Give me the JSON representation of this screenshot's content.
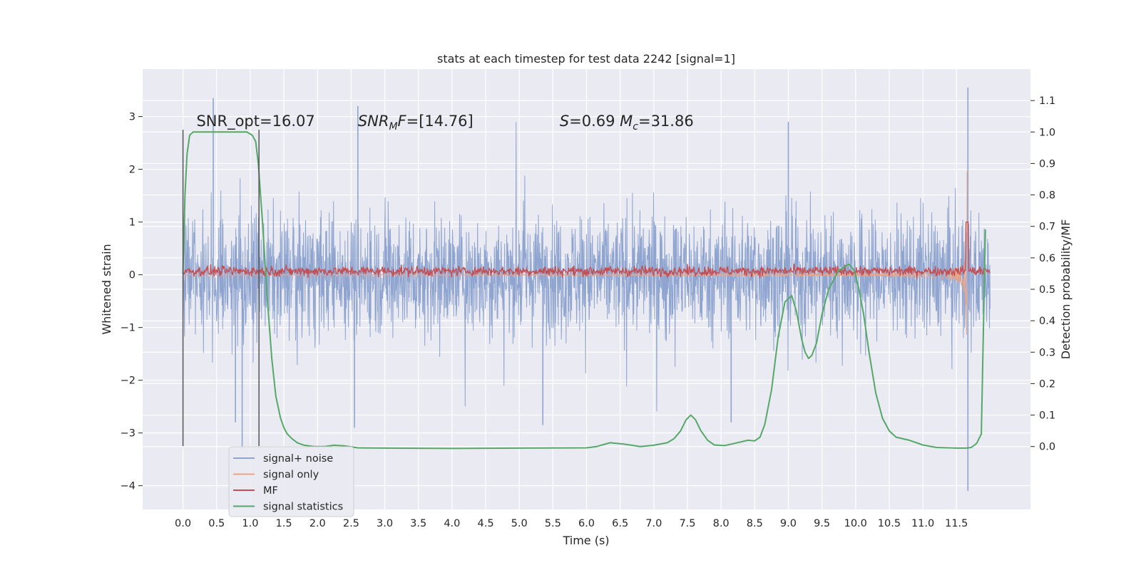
{
  "chart_data": {
    "type": "line",
    "title": "stats at each timestep for test data 2242 [signal=1]",
    "xlabel": "Time (s)",
    "ylabel": "Whitened strain",
    "ylabel_right": "Detection probability/MF",
    "xlim": [
      -0.6,
      12.6
    ],
    "ylim": [
      -4.45,
      3.9
    ],
    "ylim_right": [
      -0.2,
      1.2
    ],
    "xticks": [
      0.0,
      0.5,
      1.0,
      1.5,
      2.0,
      2.5,
      3.0,
      3.5,
      4.0,
      4.5,
      5.0,
      5.5,
      6.0,
      6.5,
      7.0,
      7.5,
      8.0,
      8.5,
      9.0,
      9.5,
      10.0,
      10.5,
      11.0,
      11.5
    ],
    "xtick_labels": [
      "0.0",
      "0.5",
      "1.0",
      "1.5",
      "2.0",
      "2.5",
      "3.0",
      "3.5",
      "4.0",
      "4.5",
      "5.0",
      "5.5",
      "6.0",
      "6.5",
      "7.0",
      "7.5",
      "8.0",
      "8.5",
      "9.0",
      "9.5",
      "10.0",
      "10.5",
      "11.0",
      "11.5"
    ],
    "yticks": [
      -4,
      -3,
      -2,
      -1,
      0,
      1,
      2,
      3
    ],
    "ytick_labels": [
      "−4",
      "−3",
      "−2",
      "−1",
      "0",
      "1",
      "2",
      "3"
    ],
    "yticks_right": [
      0.0,
      0.1,
      0.2,
      0.3,
      0.4,
      0.5,
      0.6,
      0.7,
      0.8,
      0.9,
      1.0,
      1.1
    ],
    "ytick_right_labels": [
      "0.0",
      "0.1",
      "0.2",
      "0.3",
      "0.4",
      "0.5",
      "0.6",
      "0.7",
      "0.8",
      "0.9",
      "1.0",
      "1.1"
    ],
    "grid": true,
    "legend_position": "lower-left",
    "annotations": [
      {
        "parts": [
          {
            "text": "SNR_opt=16.07",
            "italic": false
          }
        ],
        "x": 0.2,
        "y": 2.82
      },
      {
        "parts": [
          {
            "text": "SNR",
            "italic": true
          },
          {
            "text": "M",
            "italic": true,
            "sub": true
          },
          {
            "text": "F",
            "italic": true
          },
          {
            "text": "=[14.76]",
            "italic": false
          }
        ],
        "x": 2.6,
        "y": 2.82
      },
      {
        "parts": [
          {
            "text": "S",
            "italic": true
          },
          {
            "text": "=0.69   ",
            "italic": false
          },
          {
            "text": "M",
            "italic": true
          },
          {
            "text": "c",
            "italic": true,
            "sub": true
          },
          {
            "text": "=31.86",
            "italic": false
          }
        ],
        "x": 5.6,
        "y": 2.82
      }
    ],
    "vlines": [
      {
        "x": 0.0,
        "ymin": -3.25,
        "ymax": 2.75
      },
      {
        "x": 1.13,
        "ymin": -3.25,
        "ymax": 2.75
      }
    ],
    "series": [
      {
        "name": "signal+ noise",
        "color": "#8fa5d0",
        "axis": "left",
        "kind": "noise",
        "t_start": 0.0,
        "t_end": 12.0,
        "peaks": [
          {
            "x": 0.45,
            "y": 3.35
          },
          {
            "x": 0.88,
            "y": -3.3
          },
          {
            "x": 2.6,
            "y": 3.2
          },
          {
            "x": 11.67,
            "y": 3.55
          },
          {
            "x": 11.67,
            "y": -4.1
          },
          {
            "x": 0.78,
            "y": -2.8
          },
          {
            "x": 2.55,
            "y": -2.9
          },
          {
            "x": 5.35,
            "y": -2.85
          },
          {
            "x": 8.15,
            "y": -2.8
          },
          {
            "x": 9.0,
            "y": 2.9
          }
        ]
      },
      {
        "name": "signal only",
        "color": "#e8a58a",
        "axis": "left",
        "kind": "chirp",
        "merger_t": 11.66,
        "peak_amplitude": 3.35
      },
      {
        "name": "MF",
        "color": "#c44e52",
        "axis": "left",
        "kind": "band",
        "center": 0.07,
        "amplitude": 0.12
      },
      {
        "name": "signal statistics",
        "color": "#55a868",
        "axis": "right",
        "kind": "line",
        "x": [
          0.0,
          0.03,
          0.06,
          0.1,
          0.15,
          0.25,
          0.4,
          0.6,
          0.8,
          0.95,
          1.03,
          1.08,
          1.12,
          1.18,
          1.25,
          1.32,
          1.38,
          1.45,
          1.5,
          1.55,
          1.62,
          1.7,
          1.8,
          1.95,
          2.1,
          2.25,
          2.4,
          2.6,
          3.0,
          4.0,
          5.0,
          6.0,
          6.15,
          6.35,
          6.55,
          6.8,
          7.0,
          7.2,
          7.3,
          7.4,
          7.48,
          7.55,
          7.62,
          7.7,
          7.8,
          7.9,
          8.05,
          8.2,
          8.4,
          8.5,
          8.58,
          8.65,
          8.75,
          8.85,
          8.95,
          9.05,
          9.12,
          9.2,
          9.25,
          9.3,
          9.35,
          9.42,
          9.5,
          9.6,
          9.75,
          9.9,
          9.98,
          10.05,
          10.12,
          10.2,
          10.3,
          10.4,
          10.5,
          10.6,
          10.8,
          11.0,
          11.2,
          11.5,
          11.65,
          11.72,
          11.8,
          11.87,
          11.93
        ],
        "y": [
          0.55,
          0.8,
          0.93,
          0.99,
          1.0,
          1.0,
          1.0,
          1.0,
          1.0,
          1.0,
          0.99,
          0.97,
          0.9,
          0.72,
          0.48,
          0.28,
          0.16,
          0.09,
          0.06,
          0.04,
          0.025,
          0.012,
          0.004,
          0.0,
          0.0,
          0.004,
          0.002,
          -0.004,
          -0.005,
          -0.006,
          -0.005,
          -0.004,
          0.0,
          0.012,
          0.008,
          0.0,
          0.004,
          0.012,
          0.025,
          0.05,
          0.085,
          0.1,
          0.085,
          0.05,
          0.02,
          0.005,
          0.003,
          0.01,
          0.02,
          0.018,
          0.03,
          0.07,
          0.18,
          0.35,
          0.46,
          0.48,
          0.43,
          0.34,
          0.3,
          0.28,
          0.29,
          0.33,
          0.42,
          0.5,
          0.56,
          0.58,
          0.56,
          0.5,
          0.42,
          0.3,
          0.17,
          0.09,
          0.05,
          0.03,
          0.02,
          0.005,
          -0.003,
          -0.005,
          -0.005,
          -0.003,
          0.01,
          0.04,
          0.69
        ]
      }
    ]
  }
}
